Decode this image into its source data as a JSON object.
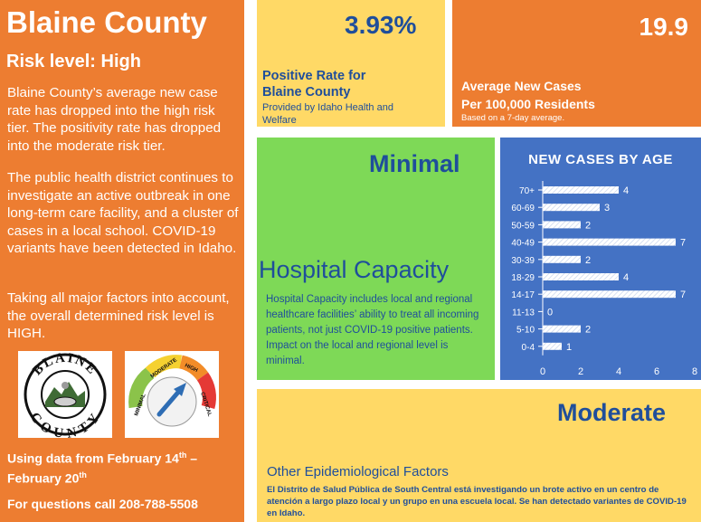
{
  "left_panel": {
    "title": "Blaine County",
    "risk_level": "Risk level: High",
    "paragraph1": "Blaine County’s average new case rate has dropped into the high risk tier. The positivity rate has dropped into the moderate risk tier.",
    "paragraph2": "The public health district continues to investigate an active outbreak in one long-term care facility, and a cluster of cases in a local school. COVID-19 variants have been detected in Idaho.",
    "paragraph3": "Taking all major factors into account, the overall determined risk level is HIGH.",
    "county_seal_text_top": "BLAINE",
    "county_seal_text_bottom": "COUNTY",
    "gauge": {
      "labels": [
        "MINIMAL",
        "MODERATE",
        "HIGH",
        "CRITICAL"
      ],
      "colors": [
        "#8BC34A",
        "#F5D130",
        "#F28C28",
        "#E53935"
      ],
      "needle_color": "#2E6DB4"
    },
    "dates_prefix": "Using data from February 14",
    "dates_sup1": "th",
    "dates_dash": " –",
    "dates_line2": "February 20",
    "dates_sup2": "th",
    "phone": "For questions call 208-788-5508"
  },
  "positive_rate": {
    "value": "3.93%",
    "label_line1": "Positive Rate for",
    "label_line2": "Blaine County",
    "sub_line1": "Provided by Idaho Health and",
    "sub_line2": "Welfare"
  },
  "average_cases": {
    "value": "19.9",
    "label_line1": "Average New Cases",
    "label_line2": "Per 100,000 Residents",
    "sub": "Based on a 7-day average."
  },
  "hospital": {
    "status": "Minimal",
    "heading": "Hospital Capacity",
    "description": "Hospital Capacity includes local and regional healthcare facilities’ ability to treat all incoming patients, not just COVID-19 positive patients. Impact on the local and regional level is minimal."
  },
  "chart_data": {
    "type": "bar",
    "orientation": "horizontal",
    "title": "NEW CASES BY AGE",
    "categories": [
      "70+",
      "60-69",
      "50-59",
      "40-49",
      "30-39",
      "18-29",
      "14-17",
      "11-13",
      "5-10",
      "0-4"
    ],
    "values": [
      4,
      3,
      2,
      7,
      2,
      4,
      7,
      0,
      2,
      1
    ],
    "xlim": [
      0,
      8
    ],
    "xticks": [
      "0",
      "2",
      "4",
      "6",
      "8"
    ],
    "grid": false,
    "colors": {
      "background": "#4472C4",
      "bar": "#FFFFFF",
      "text": "#FFFFFF"
    }
  },
  "other_factors": {
    "status": "Moderate",
    "heading": "Other Epidemiological Factors",
    "description": "El Distrito de Salud Pública de South Central está investigando un brote activo en un centro de atención a largo plazo local y un grupo en una escuela local. Se han detectado variantes de COVID-19 en Idaho."
  },
  "colors": {
    "orange": "#ED7D31",
    "yellow": "#FFD966",
    "green": "#7ED957",
    "blue_panel": "#4472C4",
    "dark_blue_text": "#1F4E9B"
  }
}
